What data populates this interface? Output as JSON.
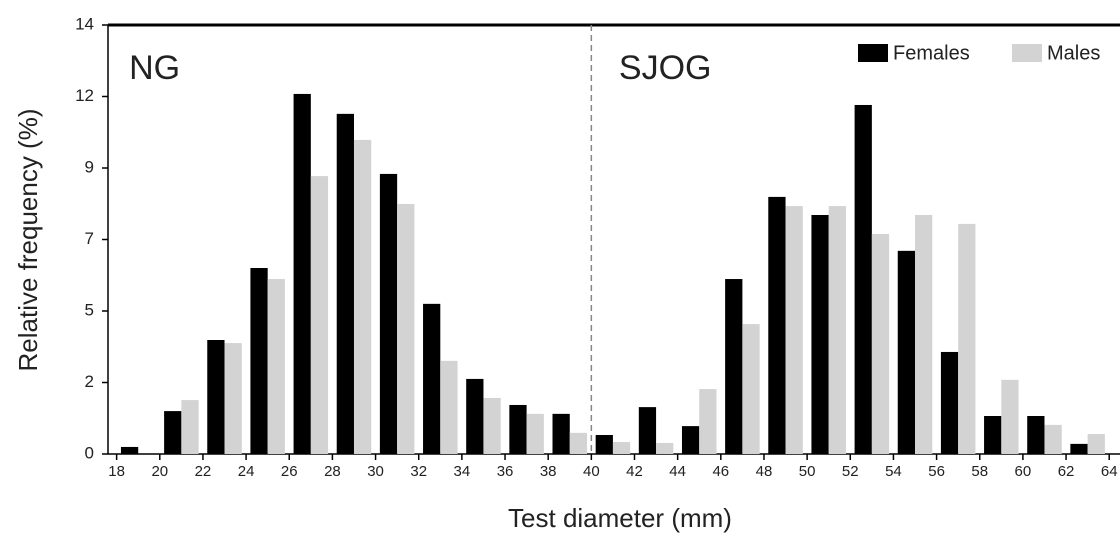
{
  "chart_data": {
    "type": "histogram",
    "xlabel": "Test diameter (mm)",
    "ylabel": "Relative frequency (%)",
    "annotations": [
      {
        "text": "NG",
        "x": 18.3
      },
      {
        "text": "SJOG",
        "x": 41
      }
    ],
    "divider_x": 40,
    "bins": [
      18,
      20,
      22,
      24,
      26,
      28,
      30,
      32,
      34,
      36,
      38,
      40,
      42,
      44,
      46,
      48,
      50,
      52,
      54,
      56,
      58,
      60,
      62,
      64
    ],
    "series": [
      {
        "name": "Females",
        "color": "#000000",
        "values": [
          0.23,
          1.4,
          3.72,
          6.07,
          11.75,
          11.1,
          9.14,
          4.9,
          2.45,
          1.6,
          1.31,
          0.62,
          1.53,
          0.91,
          5.71,
          8.39,
          7.8,
          11.39,
          6.63,
          3.33,
          1.24,
          1.24,
          0.33
        ]
      },
      {
        "name": "Males",
        "color": "#d3d3d3",
        "values": [
          0,
          1.76,
          3.62,
          5.71,
          9.07,
          10.25,
          8.16,
          3.04,
          1.83,
          1.31,
          0.69,
          0.39,
          0.36,
          2.12,
          4.24,
          8.09,
          8.09,
          7.18,
          7.8,
          7.51,
          2.42,
          0.95,
          0.65
        ]
      }
    ],
    "xlim": [
      17.6,
      64.5
    ],
    "xticks": [
      18,
      20,
      22,
      24,
      26,
      28,
      30,
      32,
      34,
      36,
      38,
      40,
      42,
      44,
      46,
      48,
      50,
      52,
      54,
      56,
      58,
      60,
      62,
      64
    ],
    "ylim": [
      0,
      14
    ],
    "yticks": [
      0,
      {
        "value": 2.333,
        "label": "2"
      },
      {
        "value": 4.667,
        "label": "5"
      },
      7,
      {
        "value": 9.333,
        "label": "9"
      },
      {
        "value": 11.667,
        "label": "12"
      },
      14
    ],
    "legend": "upper right"
  }
}
